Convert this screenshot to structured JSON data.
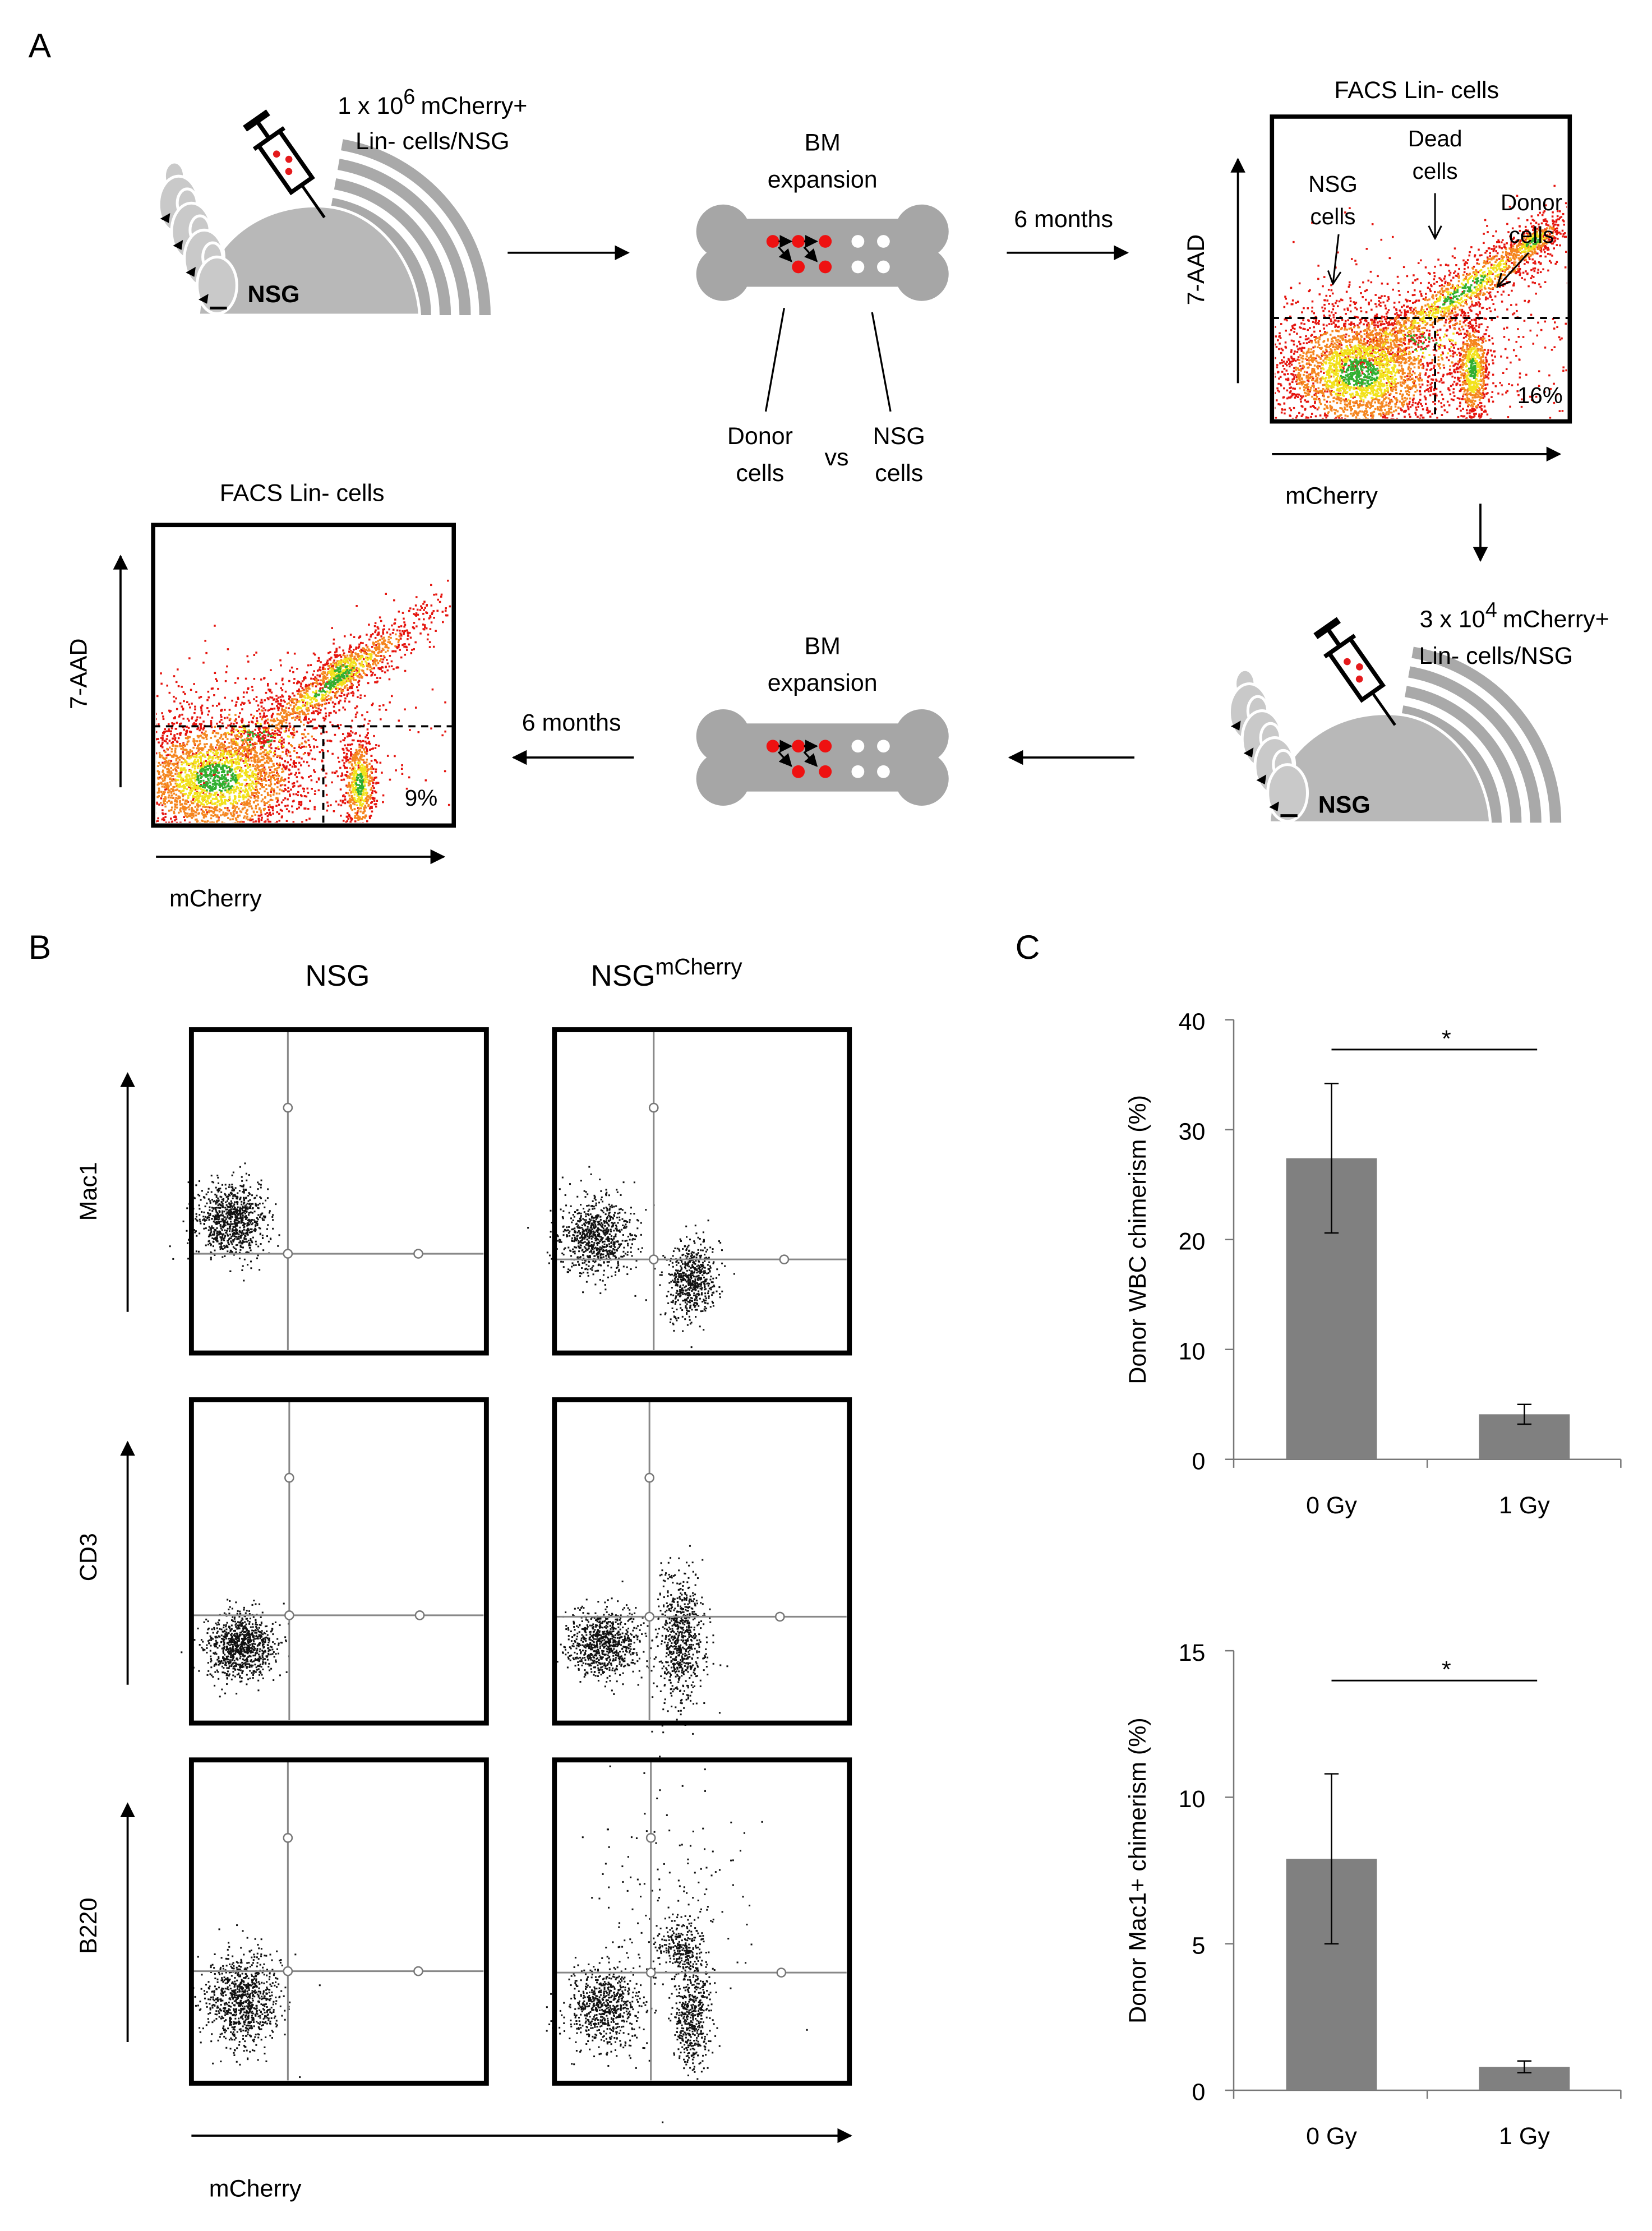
{
  "panel_a": {
    "label": "A",
    "injection_1": {
      "dose_base": "1 x 10",
      "dose_exp": "6",
      "dose_unit": "mCherry+",
      "cells": "Lin- cells/NSG",
      "mouse": "NSG"
    },
    "bm_1": {
      "line1": "BM",
      "line2": "expansion",
      "donor_line1": "Donor",
      "donor_line2": "cells",
      "vs": "vs",
      "nsg_line1": "NSG",
      "nsg_line2": "cells"
    },
    "interval_1": "6 months",
    "facs_1": {
      "title": "FACS Lin- cells",
      "y_label": "7-AAD",
      "x_label": "mCherry",
      "gate_percent": "16%",
      "nsg_line1": "NSG",
      "nsg_line2": "cells",
      "dead_line1": "Dead",
      "dead_line2": "cells",
      "donor_line1": "Donor",
      "donor_line2": "cells"
    },
    "injection_2": {
      "dose_base": "3 x 10",
      "dose_exp": "4",
      "dose_unit": "mCherry+",
      "cells": "Lin- cells/NSG",
      "mouse": "NSG"
    },
    "bm_2": {
      "line1": "BM",
      "line2": "expansion"
    },
    "interval_2": "6 months",
    "facs_2": {
      "title": "FACS Lin- cells",
      "y_label": "7-AAD",
      "x_label": "mCherry",
      "gate_percent": "9%"
    }
  },
  "panel_b": {
    "label": "B",
    "columns": [
      {
        "base": "NSG"
      },
      {
        "base": "NSG",
        "sup": "mCherry"
      }
    ],
    "rows": [
      "Mac1",
      "CD3",
      "B220"
    ],
    "x_label": "mCherry"
  },
  "panel_c": {
    "label": "C"
  },
  "chart_data": [
    {
      "type": "bar",
      "y_label": "Donor WBC chimerism (%)",
      "categories": [
        "0 Gy",
        "1 Gy"
      ],
      "values": [
        27.4,
        4.1
      ],
      "errors": [
        6.8,
        0.9
      ],
      "color": "#808080",
      "ylim": [
        0,
        40
      ],
      "yticks": [
        0,
        10,
        20,
        30,
        40
      ],
      "annotation": "*"
    },
    {
      "type": "bar",
      "y_label": "Donor Mac1+ chimerism (%)",
      "categories": [
        "0 Gy",
        "1 Gy"
      ],
      "values": [
        7.9,
        0.8
      ],
      "errors": [
        2.9,
        0.2
      ],
      "color": "#808080",
      "ylim": [
        0,
        15
      ],
      "yticks": [
        0,
        5,
        10,
        15
      ],
      "annotation": "*"
    }
  ]
}
